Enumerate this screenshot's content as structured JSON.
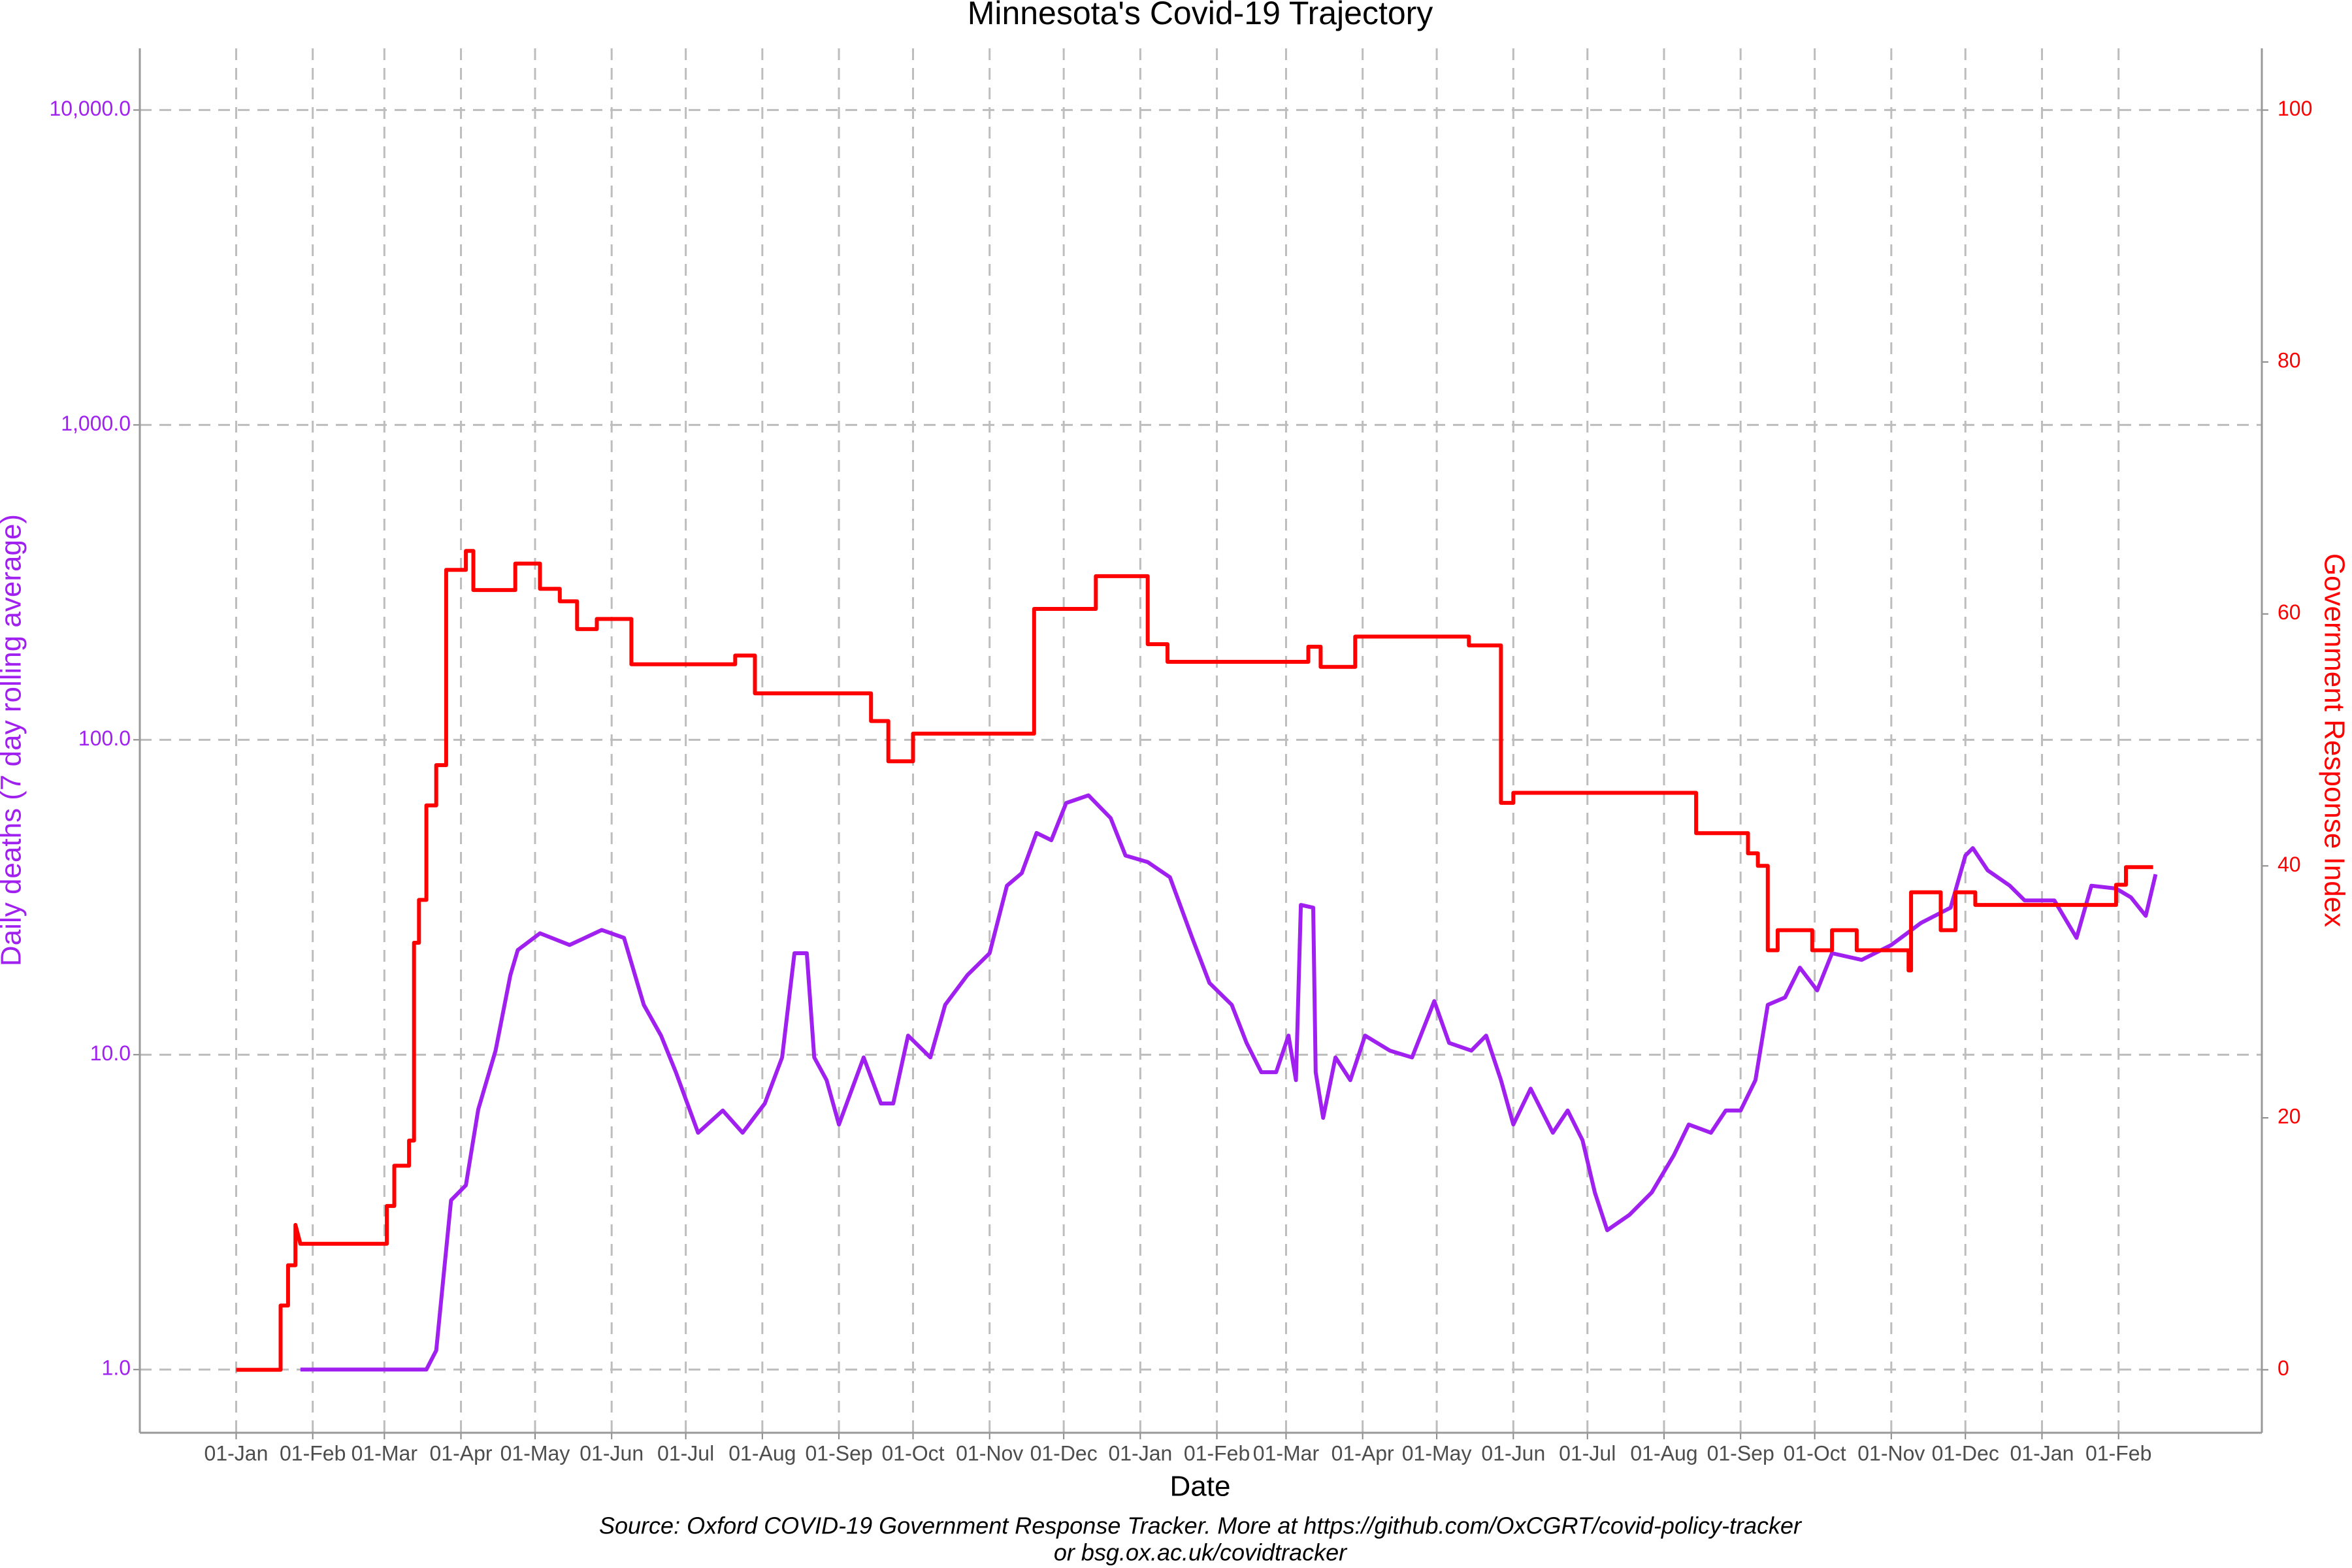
{
  "chart_data": {
    "type": "line",
    "title": "Minnesota's Covid-19 Trajectory",
    "x_label": "Date",
    "y_label": "Daily deaths (7 day rolling average)",
    "y2_label": "Government Response Index",
    "caption": [
      "Source: Oxford COVID-19 Government Response Tracker. More at https://github.com/OxCGRT/covid-policy-tracker",
      "or bsg.ox.ac.uk/covidtracker"
    ],
    "yscale": "log",
    "grid": true,
    "xlim": [
      -39,
      820
    ],
    "xticks": [
      {
        "value": 0,
        "label": "01-Jan"
      },
      {
        "value": 31,
        "label": "01-Feb"
      },
      {
        "value": 60,
        "label": "01-Mar"
      },
      {
        "value": 91,
        "label": "01-Apr"
      },
      {
        "value": 121,
        "label": "01-May"
      },
      {
        "value": 152,
        "label": "01-Jun"
      },
      {
        "value": 182,
        "label": "01-Jul"
      },
      {
        "value": 213,
        "label": "01-Aug"
      },
      {
        "value": 244,
        "label": "01-Sep"
      },
      {
        "value": 274,
        "label": "01-Oct"
      },
      {
        "value": 305,
        "label": "01-Nov"
      },
      {
        "value": 335,
        "label": "01-Dec"
      },
      {
        "value": 366,
        "label": "01-Jan"
      },
      {
        "value": 397,
        "label": "01-Feb"
      },
      {
        "value": 425,
        "label": "01-Mar"
      },
      {
        "value": 456,
        "label": "01-Apr"
      },
      {
        "value": 486,
        "label": "01-May"
      },
      {
        "value": 517,
        "label": "01-Jun"
      },
      {
        "value": 547,
        "label": "01-Jul"
      },
      {
        "value": 578,
        "label": "01-Aug"
      },
      {
        "value": 609,
        "label": "01-Sep"
      },
      {
        "value": 639,
        "label": "01-Oct"
      },
      {
        "value": 670,
        "label": "01-Nov"
      },
      {
        "value": 700,
        "label": "01-Dec"
      },
      {
        "value": 731,
        "label": "01-Jan"
      },
      {
        "value": 762,
        "label": "01-Feb"
      }
    ],
    "ylim": [
      0.63,
      15700
    ],
    "yticks": [
      {
        "value": 1,
        "label": "1.0"
      },
      {
        "value": 10,
        "label": "10.0"
      },
      {
        "value": 100,
        "label": "100.0"
      },
      {
        "value": 1000,
        "label": "1,000.0"
      },
      {
        "value": 10000,
        "label": "10,000.0"
      }
    ],
    "y_color": "#a020f0",
    "y2lim": [
      -5,
      104.9
    ],
    "y2ticks": [
      0,
      20,
      40,
      60,
      80,
      100
    ],
    "y2_color": "#ff0000",
    "series": [
      {
        "color": "#a020f0",
        "x": [
          26,
          77,
          81,
          84,
          87,
          93,
          98,
          105,
          111,
          114,
          123,
          135,
          148,
          157,
          165,
          172,
          178,
          187,
          197,
          205,
          214,
          221,
          226,
          231,
          234,
          239,
          244,
          254,
          261,
          266,
          272,
          281,
          287,
          296,
          305,
          312,
          318,
          324,
          330,
          336,
          345,
          354,
          360,
          369,
          378,
          387,
          394,
          403,
          409,
          415,
          421,
          426,
          429,
          431,
          436,
          437,
          440,
          445,
          451,
          457,
          467,
          476,
          485,
          491,
          500,
          506,
          512,
          517,
          524,
          533,
          539,
          545,
          550,
          555,
          564,
          573,
          582,
          588,
          597,
          603,
          609,
          615,
          620,
          627,
          633,
          640,
          646,
          658,
          670,
          682,
          694,
          700,
          703,
          709,
          718,
          724,
          736,
          745,
          751,
          761,
          767,
          773,
          777
        ],
        "values": [
          1,
          1,
          1.15,
          2.0,
          3.45,
          3.85,
          6.7,
          10.3,
          17.9,
          21.5,
          24.3,
          22.3,
          24.9,
          23.5,
          14.4,
          11.5,
          8.8,
          5.65,
          6.65,
          5.65,
          7.0,
          9.8,
          21,
          21,
          9.8,
          8.3,
          6.0,
          9.8,
          7.0,
          7.0,
          11.5,
          9.8,
          14.4,
          17.9,
          21,
          34.4,
          37.7,
          50.6,
          48,
          63,
          66.6,
          56.4,
          42.9,
          40.9,
          36.6,
          23.5,
          16.9,
          14.4,
          10.9,
          8.8,
          8.8,
          11.5,
          8.3,
          29.9,
          29.3,
          8.8,
          6.3,
          9.8,
          8.3,
          11.5,
          10.3,
          9.8,
          14.8,
          10.9,
          10.3,
          11.5,
          8.3,
          6.0,
          7.8,
          5.65,
          6.65,
          5.35,
          3.65,
          2.77,
          3.1,
          3.65,
          4.8,
          6.0,
          5.65,
          6.65,
          6.65,
          8.3,
          14.4,
          15.2,
          18.9,
          16,
          21,
          20,
          22.3,
          26.2,
          29.3,
          42.9,
          45.3,
          38.5,
          34.4,
          30.9,
          30.9,
          23.5,
          34.4,
          33.7,
          31.6,
          27.6,
          37.4
        ]
      },
      {
        "color": "#ff0000",
        "axis": "y2",
        "x": [
          0,
          18,
          18,
          21,
          21,
          24,
          24,
          26,
          61,
          61,
          64,
          64,
          70,
          70,
          72,
          72,
          74,
          74,
          77,
          77,
          81,
          81,
          85,
          85,
          93,
          93,
          96,
          96,
          113,
          113,
          123,
          123,
          131,
          131,
          138,
          138,
          146,
          146,
          160,
          160,
          202,
          202,
          210,
          210,
          257,
          257,
          264,
          264,
          274,
          274,
          323,
          323,
          348,
          348,
          369,
          369,
          377,
          377,
          434,
          434,
          439,
          439,
          453,
          453,
          499,
          499,
          512,
          512,
          517,
          517,
          591,
          591,
          612,
          612,
          616,
          616,
          620,
          620,
          624,
          624,
          638,
          638,
          646,
          646,
          656,
          656,
          677,
          677,
          678,
          678,
          690,
          690,
          696,
          696,
          704,
          704,
          761,
          761,
          765,
          765,
          776
        ],
        "values": [
          0,
          0,
          5.1,
          5.1,
          8.3,
          8.3,
          11.5,
          10,
          10,
          13,
          13,
          16.2,
          16.2,
          18.2,
          18.2,
          33.9,
          33.9,
          37.3,
          37.3,
          44.8,
          44.8,
          48,
          48,
          63.5,
          63.5,
          65,
          65,
          61.9,
          61.9,
          64,
          64,
          62,
          62,
          61,
          61,
          58.8,
          58.8,
          59.6,
          59.6,
          56,
          56,
          56.7,
          56.7,
          53.7,
          53.7,
          51.5,
          51.5,
          48.3,
          48.3,
          50.5,
          50.5,
          60.4,
          60.4,
          63,
          63,
          57.6,
          57.6,
          56.2,
          56.2,
          57.4,
          57.4,
          55.8,
          55.8,
          58.2,
          58.2,
          57.5,
          57.5,
          45,
          45,
          45.8,
          45.8,
          42.6,
          42.6,
          41,
          41,
          40,
          40,
          33.3,
          33.3,
          34.9,
          34.9,
          33.3,
          33.3,
          34.9,
          34.9,
          33.3,
          33.3,
          31.7,
          31.7,
          37.9,
          37.9,
          34.9,
          34.9,
          37.9,
          37.9,
          36.9,
          36.9,
          38.5,
          38.5,
          39.9,
          39.9
        ]
      }
    ]
  }
}
